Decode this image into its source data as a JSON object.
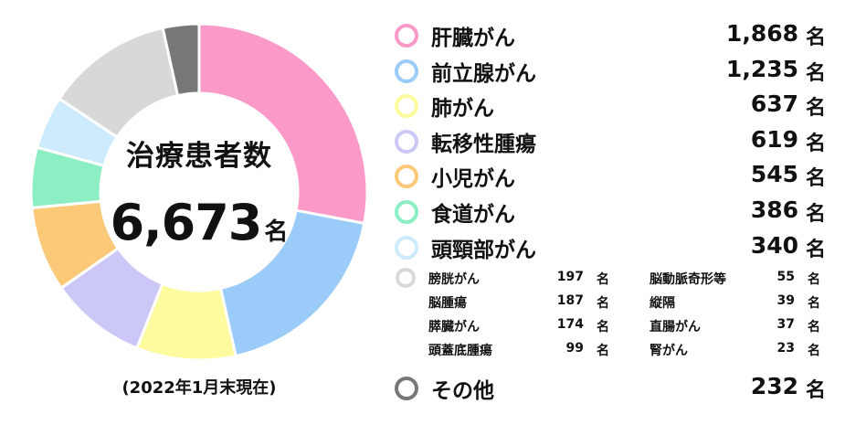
{
  "chart_data": {
    "type": "pie",
    "title": "治療患者数",
    "total_value": "6,673",
    "total_unit": "名",
    "note": "(2022年1月末現在)",
    "unit": "名",
    "slices": [
      {
        "label": "肝臓がん",
        "value": 1868,
        "value_text": "1,868",
        "color": "#fb9ac9"
      },
      {
        "label": "前立腺がん",
        "value": 1235,
        "value_text": "1,235",
        "color": "#9bcbf8"
      },
      {
        "label": "肺がん",
        "value": 637,
        "value_text": "637",
        "color": "#fdfb9d"
      },
      {
        "label": "転移性腫瘍",
        "value": 619,
        "value_text": "619",
        "color": "#cbc8f8"
      },
      {
        "label": "小児がん",
        "value": 545,
        "value_text": "545",
        "color": "#fbc978"
      },
      {
        "label": "食道がん",
        "value": 386,
        "value_text": "386",
        "color": "#8ceec3"
      },
      {
        "label": "頭頸部がん",
        "value": 340,
        "value_text": "340",
        "color": "#cdebfc"
      },
      {
        "label": "",
        "value": 811,
        "color": "#d8d8d8"
      },
      {
        "label": "その他",
        "value": 232,
        "value_text": "232",
        "color": "#777777"
      }
    ],
    "minor_items": [
      {
        "label": "膀胱がん",
        "value": "197",
        "unit": "名"
      },
      {
        "label": "脳腫瘍",
        "value": "187",
        "unit": "名"
      },
      {
        "label": "膵臓がん",
        "value": "174",
        "unit": "名"
      },
      {
        "label": "頭蓋底腫瘍",
        "value": "99",
        "unit": "名"
      },
      {
        "label": "脳動脈奇形等",
        "value": "55",
        "unit": "名"
      },
      {
        "label": "縦隔",
        "value": "39",
        "unit": "名"
      },
      {
        "label": "直腸がん",
        "value": "37",
        "unit": "名"
      },
      {
        "label": "腎がん",
        "value": "23",
        "unit": "名"
      }
    ],
    "minor_color": "#d8d8d8"
  }
}
